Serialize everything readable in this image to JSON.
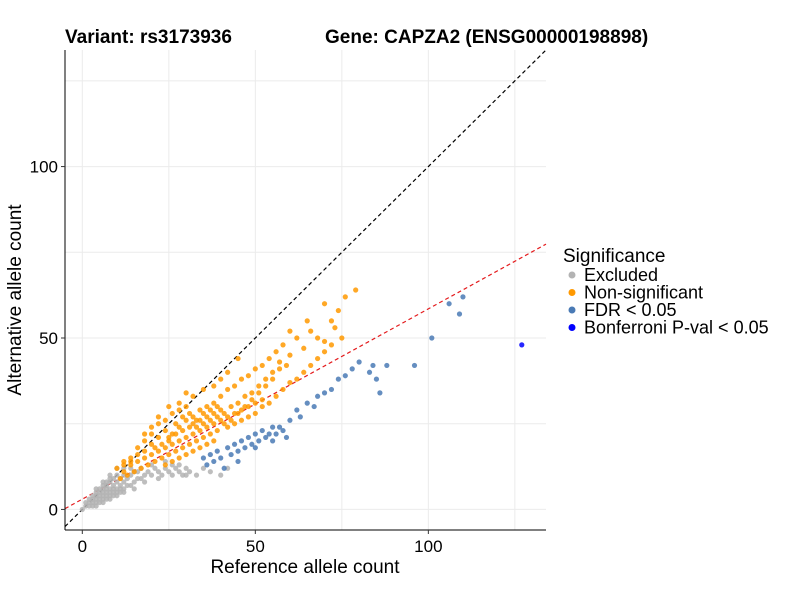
{
  "titles": {
    "variant": "Variant: rs3173936",
    "gene": "Gene: CAPZA2 (ENSG00000198898)"
  },
  "chart_data": {
    "type": "scatter",
    "xlabel": "Reference allele count",
    "ylabel": "Alternative allele count",
    "xlim": [
      -5,
      134
    ],
    "ylim": [
      -6,
      134
    ],
    "x_ticks": [
      0,
      50,
      100
    ],
    "y_ticks": [
      0,
      50,
      100
    ],
    "grid": true,
    "reference_lines": [
      {
        "name": "identity",
        "slope": 1.0,
        "intercept": 0,
        "color": "#000000",
        "style": "dashed"
      },
      {
        "name": "fit",
        "slope": 0.555,
        "intercept": 3,
        "color": "#e41a1c",
        "style": "dashed"
      }
    ],
    "legend": {
      "title": "Significance",
      "position": "right",
      "entries": [
        {
          "label": "Excluded",
          "color": "#b3b3b3"
        },
        {
          "label": "Non-significant",
          "color": "#ff9900"
        },
        {
          "label": "FDR < 0.05",
          "color": "#4a7ab5"
        },
        {
          "label": "Bonferroni P-val < 0.05",
          "color": "#0000ff"
        }
      ]
    },
    "series": [
      {
        "name": "Excluded",
        "color": "#b3b3b3",
        "points": [
          [
            0,
            0
          ],
          [
            1,
            1
          ],
          [
            1,
            2
          ],
          [
            2,
            1
          ],
          [
            2,
            2
          ],
          [
            2,
            3
          ],
          [
            3,
            2
          ],
          [
            3,
            3
          ],
          [
            3,
            4
          ],
          [
            4,
            2
          ],
          [
            4,
            3
          ],
          [
            4,
            4
          ],
          [
            4,
            5
          ],
          [
            5,
            3
          ],
          [
            5,
            4
          ],
          [
            5,
            5
          ],
          [
            5,
            6
          ],
          [
            6,
            3
          ],
          [
            6,
            4
          ],
          [
            6,
            5
          ],
          [
            6,
            6
          ],
          [
            6,
            7
          ],
          [
            7,
            4
          ],
          [
            7,
            5
          ],
          [
            7,
            6
          ],
          [
            7,
            7
          ],
          [
            7,
            8
          ],
          [
            8,
            4
          ],
          [
            8,
            5
          ],
          [
            8,
            6
          ],
          [
            8,
            8
          ],
          [
            8,
            9
          ],
          [
            9,
            5
          ],
          [
            9,
            6
          ],
          [
            9,
            7
          ],
          [
            9,
            9
          ],
          [
            10,
            5
          ],
          [
            10,
            6
          ],
          [
            10,
            8
          ],
          [
            10,
            10
          ],
          [
            11,
            6
          ],
          [
            11,
            7
          ],
          [
            11,
            9
          ],
          [
            12,
            6
          ],
          [
            12,
            8
          ],
          [
            12,
            10
          ],
          [
            13,
            7
          ],
          [
            13,
            9
          ],
          [
            14,
            7
          ],
          [
            14,
            10
          ],
          [
            15,
            8
          ],
          [
            15,
            11
          ],
          [
            16,
            9
          ],
          [
            17,
            9
          ],
          [
            17,
            12
          ],
          [
            18,
            10
          ],
          [
            19,
            11
          ],
          [
            20,
            10
          ],
          [
            21,
            12
          ],
          [
            22,
            11
          ],
          [
            23,
            10
          ],
          [
            24,
            12
          ],
          [
            25,
            11
          ],
          [
            26,
            13
          ],
          [
            27,
            12
          ],
          [
            28,
            11
          ],
          [
            29,
            10
          ],
          [
            30,
            12
          ],
          [
            31,
            11
          ],
          [
            33,
            10
          ],
          [
            35,
            12
          ],
          [
            37,
            11
          ],
          [
            40,
            10
          ],
          [
            42,
            12
          ],
          [
            3,
            1
          ],
          [
            5,
            2
          ],
          [
            7,
            3
          ],
          [
            9,
            4
          ],
          [
            11,
            5
          ],
          [
            4,
            1
          ],
          [
            6,
            2
          ],
          [
            8,
            3
          ],
          [
            10,
            4
          ],
          [
            12,
            5
          ],
          [
            15,
            6
          ],
          [
            18,
            8
          ],
          [
            22,
            9
          ],
          [
            26,
            10
          ],
          [
            30,
            10
          ],
          [
            8,
            10
          ],
          [
            6,
            8
          ],
          [
            4,
            6
          ],
          [
            10,
            12
          ],
          [
            12,
            12
          ],
          [
            14,
            12
          ],
          [
            16,
            11
          ],
          [
            20,
            13
          ],
          [
            24,
            14
          ],
          [
            28,
            13
          ]
        ]
      },
      {
        "name": "Non-significant",
        "color": "#ff9900",
        "points": [
          [
            10,
            12
          ],
          [
            12,
            14
          ],
          [
            14,
            15
          ],
          [
            16,
            18
          ],
          [
            18,
            20
          ],
          [
            20,
            22
          ],
          [
            22,
            25
          ],
          [
            24,
            26
          ],
          [
            26,
            28
          ],
          [
            28,
            29
          ],
          [
            30,
            30
          ],
          [
            32,
            27
          ],
          [
            34,
            29
          ],
          [
            36,
            30
          ],
          [
            38,
            31
          ],
          [
            40,
            33
          ],
          [
            42,
            35
          ],
          [
            44,
            36
          ],
          [
            46,
            38
          ],
          [
            48,
            39
          ],
          [
            50,
            41
          ],
          [
            52,
            42
          ],
          [
            54,
            44
          ],
          [
            56,
            46
          ],
          [
            58,
            48
          ],
          [
            60,
            52
          ],
          [
            62,
            50
          ],
          [
            65,
            55
          ],
          [
            68,
            50
          ],
          [
            70,
            60
          ],
          [
            72,
            55
          ],
          [
            74,
            58
          ],
          [
            76,
            62
          ],
          [
            79,
            64
          ],
          [
            73,
            53
          ],
          [
            70,
            49
          ],
          [
            66,
            52
          ],
          [
            64,
            47
          ],
          [
            60,
            45
          ],
          [
            57,
            43
          ],
          [
            55,
            38
          ],
          [
            53,
            36
          ],
          [
            51,
            34
          ],
          [
            49,
            32
          ],
          [
            47,
            30
          ],
          [
            45,
            28
          ],
          [
            43,
            26
          ],
          [
            41,
            25
          ],
          [
            39,
            23
          ],
          [
            37,
            22
          ],
          [
            35,
            21
          ],
          [
            33,
            20
          ],
          [
            31,
            19
          ],
          [
            29,
            18
          ],
          [
            27,
            17
          ],
          [
            25,
            16
          ],
          [
            23,
            15
          ],
          [
            21,
            14
          ],
          [
            19,
            13
          ],
          [
            17,
            12
          ],
          [
            15,
            11
          ],
          [
            13,
            10
          ],
          [
            11,
            9
          ],
          [
            12,
            11
          ],
          [
            14,
            13
          ],
          [
            16,
            14
          ],
          [
            18,
            15
          ],
          [
            20,
            16
          ],
          [
            22,
            17
          ],
          [
            24,
            18
          ],
          [
            26,
            19
          ],
          [
            28,
            20
          ],
          [
            30,
            21
          ],
          [
            32,
            22
          ],
          [
            34,
            23
          ],
          [
            36,
            24
          ],
          [
            38,
            25
          ],
          [
            40,
            26
          ],
          [
            42,
            27
          ],
          [
            44,
            28
          ],
          [
            46,
            29
          ],
          [
            48,
            30
          ],
          [
            50,
            31
          ],
          [
            52,
            32
          ],
          [
            20,
            19
          ],
          [
            22,
            21
          ],
          [
            24,
            23
          ],
          [
            26,
            22
          ],
          [
            28,
            24
          ],
          [
            30,
            26
          ],
          [
            32,
            25
          ],
          [
            34,
            26
          ],
          [
            36,
            27
          ],
          [
            38,
            28
          ],
          [
            40,
            29
          ],
          [
            18,
            17
          ],
          [
            16,
            16
          ],
          [
            14,
            14
          ],
          [
            12,
            13
          ],
          [
            25,
            20
          ],
          [
            27,
            22
          ],
          [
            29,
            23
          ],
          [
            31,
            24
          ],
          [
            33,
            24
          ],
          [
            35,
            25
          ],
          [
            37,
            26
          ],
          [
            39,
            27
          ],
          [
            41,
            28
          ],
          [
            43,
            30
          ],
          [
            45,
            31
          ],
          [
            47,
            33
          ],
          [
            49,
            34
          ],
          [
            51,
            36
          ],
          [
            53,
            38
          ],
          [
            55,
            40
          ],
          [
            57,
            41
          ],
          [
            59,
            42
          ],
          [
            21,
            18
          ],
          [
            23,
            19
          ],
          [
            25,
            21
          ],
          [
            27,
            25
          ],
          [
            29,
            27
          ],
          [
            31,
            28
          ],
          [
            33,
            26
          ],
          [
            35,
            28
          ],
          [
            37,
            29
          ],
          [
            39,
            30
          ],
          [
            20,
            24
          ],
          [
            18,
            22
          ],
          [
            22,
            27
          ],
          [
            25,
            30
          ],
          [
            28,
            31
          ],
          [
            30,
            34
          ],
          [
            32,
            33
          ],
          [
            35,
            35
          ],
          [
            38,
            36
          ],
          [
            40,
            38
          ],
          [
            42,
            40
          ],
          [
            45,
            44
          ],
          [
            38,
            20
          ],
          [
            36,
            19
          ],
          [
            34,
            18
          ],
          [
            32,
            17
          ],
          [
            30,
            16
          ],
          [
            28,
            15
          ],
          [
            26,
            14
          ],
          [
            24,
            13
          ],
          [
            42,
            24
          ],
          [
            44,
            25
          ],
          [
            46,
            26
          ],
          [
            48,
            27
          ],
          [
            50,
            28
          ],
          [
            52,
            30
          ],
          [
            54,
            31
          ],
          [
            56,
            33
          ],
          [
            58,
            35
          ],
          [
            60,
            37
          ],
          [
            62,
            38
          ],
          [
            64,
            40
          ],
          [
            66,
            42
          ],
          [
            68,
            44
          ],
          [
            70,
            46
          ],
          [
            72,
            48
          ],
          [
            75,
            50
          ]
        ]
      },
      {
        "name": "FDR < 0.05",
        "color": "#4a7ab5",
        "points": [
          [
            35,
            15
          ],
          [
            37,
            16
          ],
          [
            39,
            17
          ],
          [
            40,
            15
          ],
          [
            42,
            18
          ],
          [
            43,
            16
          ],
          [
            44,
            19
          ],
          [
            45,
            17
          ],
          [
            46,
            20
          ],
          [
            47,
            18
          ],
          [
            48,
            21
          ],
          [
            49,
            19
          ],
          [
            50,
            22
          ],
          [
            51,
            20
          ],
          [
            52,
            23
          ],
          [
            53,
            21
          ],
          [
            54,
            22
          ],
          [
            55,
            24
          ],
          [
            56,
            22
          ],
          [
            57,
            24
          ],
          [
            58,
            23
          ],
          [
            60,
            26
          ],
          [
            62,
            29
          ],
          [
            63,
            27
          ],
          [
            65,
            31
          ],
          [
            67,
            30
          ],
          [
            68,
            33
          ],
          [
            70,
            34
          ],
          [
            72,
            35
          ],
          [
            74,
            38
          ],
          [
            76,
            39
          ],
          [
            78,
            41
          ],
          [
            80,
            43
          ],
          [
            83,
            40
          ],
          [
            84,
            42
          ],
          [
            85,
            38
          ],
          [
            86,
            34
          ],
          [
            88,
            42
          ],
          [
            96,
            42
          ],
          [
            101,
            50
          ],
          [
            106,
            60
          ],
          [
            109,
            57
          ],
          [
            110,
            62
          ],
          [
            41,
            12
          ],
          [
            38,
            14
          ],
          [
            36,
            13
          ],
          [
            45,
            14
          ],
          [
            50,
            18
          ],
          [
            55,
            20
          ],
          [
            59,
            21
          ]
        ]
      },
      {
        "name": "Bonferroni P-val < 0.05",
        "color": "#0000ff",
        "points": [
          [
            127,
            48
          ]
        ]
      }
    ]
  }
}
